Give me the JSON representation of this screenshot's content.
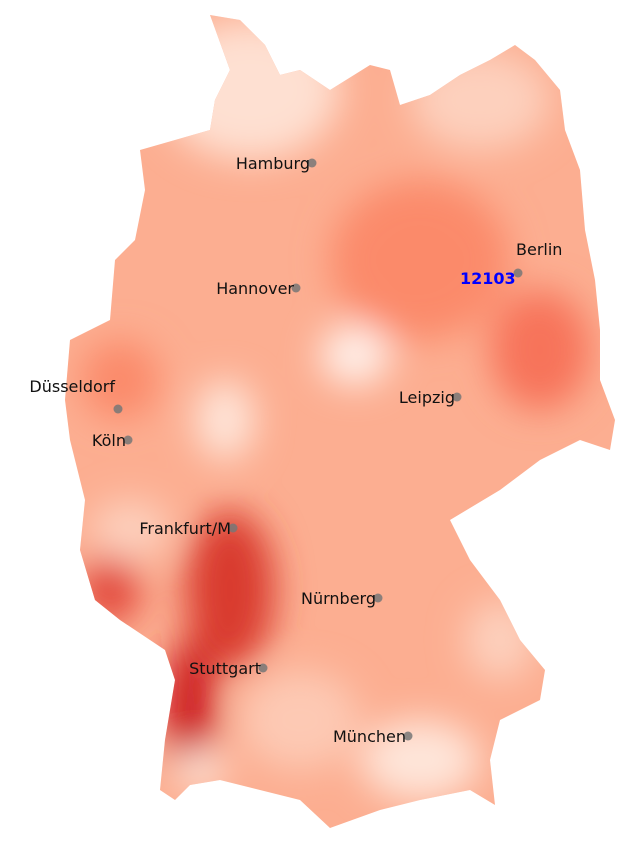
{
  "colors": {
    "low": "#fee5d9",
    "mid": "#fc9272",
    "high": "#cb181d",
    "highlight_label": "#0000ff",
    "marker": "#777777"
  },
  "highlight": {
    "label": "12103",
    "near_city": "Berlin"
  },
  "cities": [
    {
      "name": "Hamburg"
    },
    {
      "name": "Berlin"
    },
    {
      "name": "Hannover"
    },
    {
      "name": "Düsseldorf"
    },
    {
      "name": "Köln"
    },
    {
      "name": "Leipzig"
    },
    {
      "name": "Frankfurt/M"
    },
    {
      "name": "Nürnberg"
    },
    {
      "name": "Stuttgart"
    },
    {
      "name": "München"
    }
  ]
}
